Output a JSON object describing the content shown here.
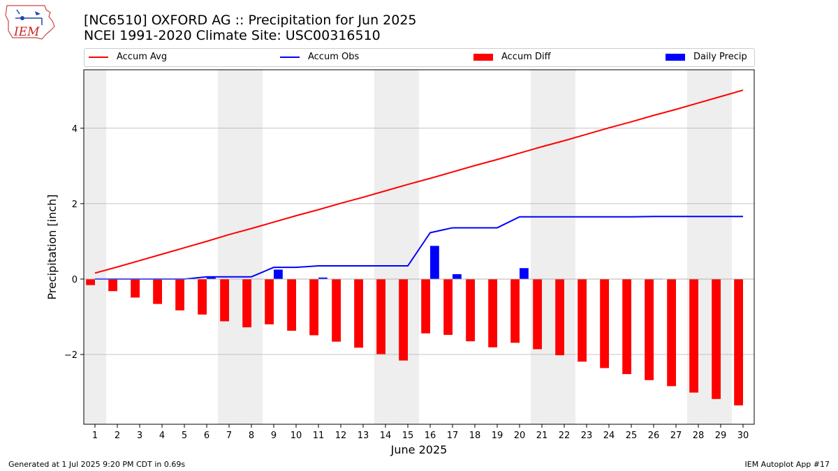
{
  "header": {
    "title_line1": "[NC6510] OXFORD AG :: Precipitation for Jun 2025",
    "title_line2": "NCEI 1991-2020 Climate Site: USC00316510",
    "logo_text": "IEM"
  },
  "legend": {
    "accum_avg": "Accum Avg",
    "accum_obs": "Accum Obs",
    "accum_diff": "Accum Diff",
    "daily_precip": "Daily Precip"
  },
  "footer": {
    "left": "Generated at 1 Jul 2025 9:20 PM CDT in 0.69s",
    "right": "IEM Autoplot App #17"
  },
  "colors": {
    "avg": "#ff0000",
    "obs": "#0000ff",
    "diff": "#ff0000",
    "daily": "#0000ff",
    "weekend": "#eeeeee",
    "grid": "#b0b0b0"
  },
  "chart_data": {
    "type": "bar",
    "xlabel": "June 2025",
    "ylabel": "Precipitation [inch]",
    "x": [
      1,
      2,
      3,
      4,
      5,
      6,
      7,
      8,
      9,
      10,
      11,
      12,
      13,
      14,
      15,
      16,
      17,
      18,
      19,
      20,
      21,
      22,
      23,
      24,
      25,
      26,
      27,
      28,
      29,
      30
    ],
    "xlim": [
      0.5,
      30.5
    ],
    "ylim": [
      -3.85,
      5.55
    ],
    "yticks": [
      -2,
      0,
      2,
      4
    ],
    "grid": "y-axis",
    "shaded_weekend_days": [
      1,
      7,
      8,
      14,
      15,
      21,
      22,
      28,
      29
    ],
    "legend_placement": "top",
    "series": [
      {
        "name": "Accum Avg",
        "kind": "line",
        "values": [
          0.16,
          0.32,
          0.49,
          0.66,
          0.83,
          1.0,
          1.18,
          1.34,
          1.51,
          1.68,
          1.84,
          2.01,
          2.17,
          2.34,
          2.51,
          2.67,
          2.84,
          3.01,
          3.17,
          3.34,
          3.51,
          3.67,
          3.84,
          4.01,
          4.17,
          4.34,
          4.5,
          4.67,
          4.84,
          5.01
        ]
      },
      {
        "name": "Accum Obs",
        "kind": "line",
        "values": [
          0.0,
          0.0,
          0.0,
          0.0,
          0.0,
          0.06,
          0.06,
          0.06,
          0.31,
          0.31,
          0.35,
          0.35,
          0.35,
          0.35,
          0.35,
          1.23,
          1.36,
          1.36,
          1.36,
          1.65,
          1.65,
          1.65,
          1.65,
          1.65,
          1.65,
          1.66,
          1.66,
          1.66,
          1.66,
          1.66
        ]
      },
      {
        "name": "Accum Diff",
        "kind": "bar",
        "values": [
          -0.16,
          -0.32,
          -0.49,
          -0.66,
          -0.83,
          -0.94,
          -1.12,
          -1.28,
          -1.2,
          -1.37,
          -1.49,
          -1.66,
          -1.82,
          -1.99,
          -2.16,
          -1.44,
          -1.48,
          -1.65,
          -1.81,
          -1.69,
          -1.86,
          -2.02,
          -2.19,
          -2.36,
          -2.52,
          -2.68,
          -2.84,
          -3.01,
          -3.18,
          -3.35
        ]
      },
      {
        "name": "Daily Precip",
        "kind": "bar",
        "values": [
          0,
          0,
          0,
          0,
          0,
          0.06,
          0,
          0,
          0.25,
          0,
          0.04,
          0,
          0,
          0,
          0,
          0.88,
          0.13,
          0,
          0,
          0.29,
          0,
          0,
          0,
          0,
          0,
          0.01,
          0,
          0,
          0,
          0
        ]
      }
    ]
  }
}
